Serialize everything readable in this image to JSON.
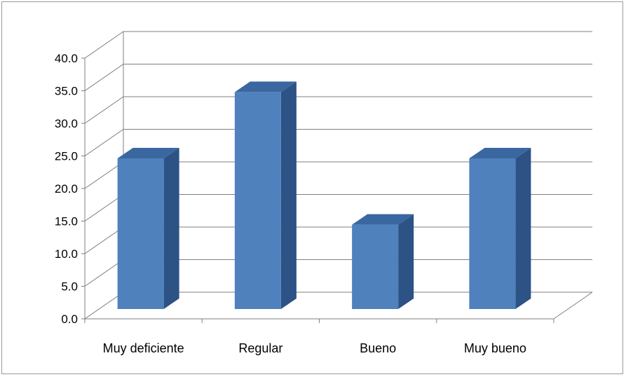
{
  "chart_data": {
    "type": "bar",
    "style": "3d-column",
    "title": "",
    "xlabel": "",
    "ylabel": "",
    "categories": [
      "Muy deficiente",
      "Regular",
      "Bueno",
      "Muy bueno"
    ],
    "values": [
      25.0,
      36.0,
      14.0,
      25.0
    ],
    "ylim": [
      0,
      40
    ],
    "y_ticks": [
      "0.0",
      "5.0",
      "10.0",
      "15.0",
      "20.0",
      "25.0",
      "30.0",
      "35.0",
      "40.0"
    ],
    "grid": true,
    "legend": "none",
    "colors": {
      "bar_front": "#4f81bd",
      "bar_side": "#2c5286",
      "bar_top": "#3b67a0",
      "gridline": "#7f7f7f"
    }
  }
}
